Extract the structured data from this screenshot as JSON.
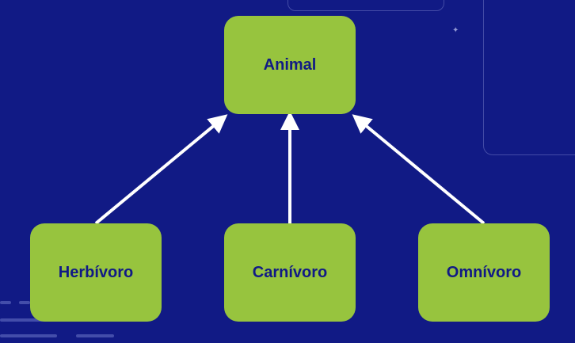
{
  "diagram": {
    "root": {
      "label": "Animal"
    },
    "children": [
      {
        "label": "Herbívoro"
      },
      {
        "label": "Carnívoro"
      },
      {
        "label": "Omnívoro"
      }
    ],
    "edge_direction": "child-to-parent"
  },
  "colors": {
    "background": "#111a85",
    "node_fill": "#97c43e",
    "node_text": "#111a85",
    "arrow": "#ffffff"
  }
}
